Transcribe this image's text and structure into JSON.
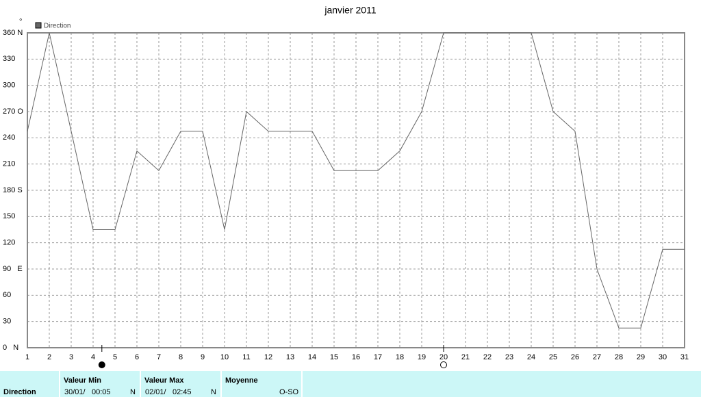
{
  "chart_data": {
    "type": "line",
    "title": "janvier 2011",
    "y_unit": "°",
    "x": [
      1,
      2,
      3,
      4,
      5,
      6,
      7,
      8,
      9,
      10,
      11,
      12,
      13,
      14,
      15,
      16,
      17,
      18,
      19,
      20,
      21,
      22,
      23,
      24,
      25,
      26,
      27,
      28,
      29,
      30,
      31
    ],
    "series": [
      {
        "name": "Direction",
        "color": "#666666",
        "values": [
          247.5,
          360,
          247.5,
          135,
          135,
          225,
          202.5,
          247.5,
          247.5,
          135,
          270,
          247.5,
          247.5,
          247.5,
          202.5,
          202.5,
          202.5,
          225,
          270,
          360,
          360,
          360,
          360,
          360,
          270,
          247.5,
          90,
          22.5,
          22.5,
          112.5,
          112.5
        ]
      }
    ],
    "xlim": [
      1,
      31
    ],
    "xticks": [
      1,
      2,
      3,
      4,
      5,
      6,
      7,
      8,
      9,
      10,
      11,
      12,
      13,
      14,
      15,
      16,
      17,
      18,
      19,
      20,
      21,
      22,
      23,
      24,
      25,
      26,
      27,
      28,
      29,
      30,
      31
    ],
    "ylim": [
      0,
      360
    ],
    "yticks": [
      {
        "value": 0,
        "label": "0   N"
      },
      30,
      60,
      {
        "value": 90,
        "label": "90   E"
      },
      120,
      150,
      {
        "value": 180,
        "label": "180 S"
      },
      210,
      240,
      {
        "value": 270,
        "label": "270 O"
      },
      300,
      330,
      {
        "value": 360,
        "label": "360 N"
      }
    ],
    "grid": true,
    "markers": [
      {
        "x": 4.4,
        "fill": "#000000"
      },
      {
        "x": 20,
        "fill": "#ffffff"
      }
    ]
  },
  "table": {
    "row_label": "Direction",
    "min": {
      "header": "Valeur Min",
      "date": "30/01/",
      "time": "00:05",
      "dir": "N"
    },
    "max": {
      "header": "Valeur Max",
      "date": "02/01/",
      "time": "02:45",
      "dir": "N"
    },
    "mean": {
      "header": "Moyenne",
      "dir": "O-SO"
    }
  }
}
